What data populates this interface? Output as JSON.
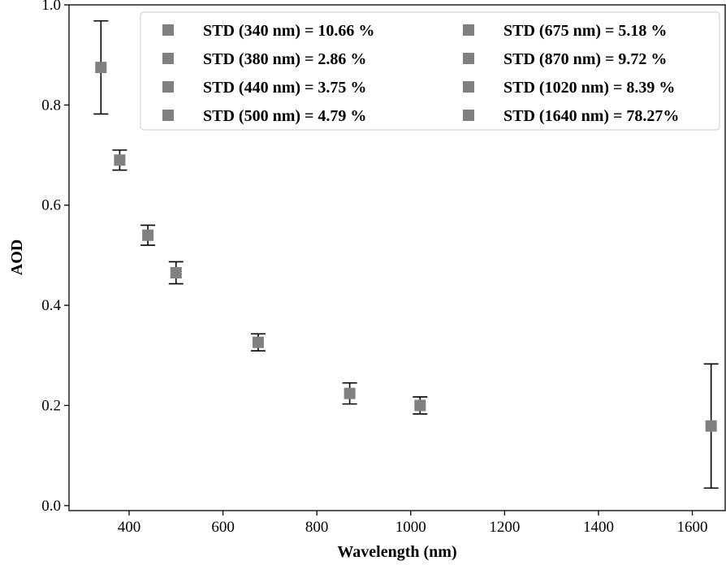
{
  "chart_data": {
    "type": "scatter",
    "xlabel": "Wavelength (nm)",
    "ylabel": "AOD",
    "xlim": [
      272,
      1670
    ],
    "ylim": [
      -0.01,
      1.0
    ],
    "xticks": [
      400,
      600,
      800,
      1000,
      1200,
      1400,
      1600
    ],
    "yticks": [
      0.0,
      0.2,
      0.4,
      0.6,
      0.8,
      1.0
    ],
    "xtick_labels": [
      "400",
      "600",
      "800",
      "1000",
      "1200",
      "1400",
      "1600"
    ],
    "ytick_labels": [
      "0.0",
      "0.2",
      "0.4",
      "0.6",
      "0.8",
      "1.0"
    ],
    "grid": false,
    "legend_position": "top-right",
    "marker_color": "#808080",
    "errorbar_color": "#000000",
    "series": [
      {
        "name": "STD (340 nm) = 10.66 %",
        "x": 340,
        "y": 0.875,
        "err": 0.093
      },
      {
        "name": "STD (380 nm) = 2.86 %",
        "x": 380,
        "y": 0.69,
        "err": 0.02
      },
      {
        "name": "STD (440 nm) = 3.75 %",
        "x": 440,
        "y": 0.54,
        "err": 0.02
      },
      {
        "name": "STD (500 nm) = 4.79 %",
        "x": 500,
        "y": 0.465,
        "err": 0.022
      },
      {
        "name": "STD (675 nm) = 5.18 %",
        "x": 675,
        "y": 0.326,
        "err": 0.017
      },
      {
        "name": "STD (870 nm) = 9.72 %",
        "x": 870,
        "y": 0.224,
        "err": 0.021
      },
      {
        "name": "STD (1020 nm) = 8.39 %",
        "x": 1020,
        "y": 0.2,
        "err": 0.017
      },
      {
        "name": "STD (1640 nm) = 78.27%",
        "x": 1640,
        "y": 0.159,
        "err": 0.124
      }
    ]
  }
}
